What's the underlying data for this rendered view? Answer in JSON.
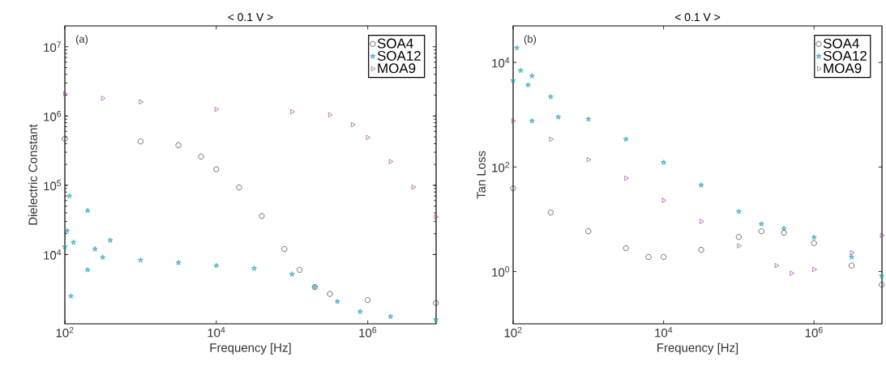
{
  "chart_data": [
    {
      "type": "scatter",
      "title": "< 0.1 V >",
      "xlabel": "Frequency [Hz]",
      "ylabel": "Dielectric Constant",
      "annotations": [
        "(a)"
      ],
      "xlim": [
        100,
        8000000
      ],
      "ylim": [
        1000,
        20000000
      ],
      "xticks": [
        {
          "value": 100,
          "label": "10$^{2}$"
        },
        {
          "value": 10000,
          "label": "10$^{4}$"
        },
        {
          "value": 1000000,
          "label": "10$^{6}$"
        }
      ],
      "yticks": [
        {
          "value": 10000,
          "label": "10$^{4}$"
        },
        {
          "value": 100000,
          "label": "10$^{5}$"
        },
        {
          "value": 1000000,
          "label": "10$^{6}$"
        },
        {
          "value": 10000000,
          "label": "10$^{7}$"
        }
      ],
      "log": "xy",
      "legend": "top right",
      "series": [
        {
          "name": "SOA4",
          "color": "#333333",
          "marker": "circle",
          "x": [
            100,
            1000,
            3162,
            6310,
            10000,
            20000,
            39800,
            79400,
            126000,
            200000,
            316000,
            1000000,
            7940000
          ],
          "values": [
            470000,
            430000,
            380000,
            260000,
            170000,
            93000,
            36000,
            12000,
            6000,
            3400,
            2700,
            2200,
            2000
          ]
        },
        {
          "name": "SOA12",
          "color": "#1a9fb5",
          "marker": "star",
          "x": [
            100,
            107,
            115,
            120,
            130,
            200,
            200,
            250,
            398,
            316,
            1000,
            3162,
            10000,
            31600,
            100000,
            200000,
            398000,
            794000,
            2000000,
            7940000
          ],
          "values": [
            13000,
            22000,
            70000,
            2500,
            15000,
            43000,
            6000,
            12000,
            16000,
            9100,
            8300,
            7600,
            6900,
            6300,
            5200,
            3400,
            2100,
            1500,
            1270,
            1150
          ]
        },
        {
          "name": "MOA9",
          "color": "#a0409a",
          "marker": "triangle",
          "x": [
            100,
            316,
            1000,
            10000,
            100000,
            316000,
            631000,
            1000000,
            2000000,
            3980000,
            7940000
          ],
          "values": [
            2100000,
            1800000,
            1600000,
            1250000,
            1150000,
            1040000,
            750000,
            490000,
            220000,
            94000,
            35000
          ]
        }
      ]
    },
    {
      "type": "scatter",
      "title": "< 0.1 V >",
      "xlabel": "Frequency [Hz]",
      "ylabel": "Tan Loss",
      "annotations": [
        "(b)"
      ],
      "xlim": [
        100,
        8000000
      ],
      "ylim": [
        0.1,
        50000
      ],
      "xticks": [
        {
          "value": 100,
          "label": "10$^{2}$"
        },
        {
          "value": 10000,
          "label": "10$^{4}$"
        },
        {
          "value": 1000000,
          "label": "10$^{6}$"
        }
      ],
      "yticks": [
        {
          "value": 1,
          "label": "10$^{0}$"
        },
        {
          "value": 100,
          "label": "10$^{2}$"
        },
        {
          "value": 10000,
          "label": "10$^{4}$"
        }
      ],
      "log": "xy",
      "legend": "top right",
      "series": [
        {
          "name": "SOA4",
          "color": "#333333",
          "marker": "circle",
          "x": [
            100,
            316,
            1000,
            3162,
            6310,
            10000,
            31600,
            100000,
            200000,
            398000,
            1000000,
            3160000,
            7940000
          ],
          "values": [
            39,
            13.5,
            5.9,
            2.8,
            1.9,
            1.9,
            2.6,
            4.6,
            5.9,
            5.5,
            3.5,
            1.3,
            0.56
          ]
        },
        {
          "name": "SOA12",
          "color": "#1a9fb5",
          "marker": "star",
          "x": [
            100,
            112,
            126,
            178,
            178,
            398,
            158,
            316,
            1000,
            3162,
            10000,
            31600,
            100000,
            200000,
            398000,
            1000000,
            3160000,
            7940000
          ],
          "values": [
            4500,
            19000,
            7000,
            5500,
            760,
            900,
            3700,
            2200,
            820,
            340,
            122,
            45,
            14,
            8.1,
            6.6,
            4.5,
            1.9,
            0.83
          ]
        },
        {
          "name": "MOA9",
          "color": "#a0409a",
          "marker": "triangle",
          "x": [
            100,
            316,
            1000,
            3162,
            10000,
            31600,
            100000,
            316000,
            501000,
            1000000,
            3160000,
            7940000
          ],
          "values": [
            760,
            340,
            138,
            61,
            23,
            9.1,
            3.1,
            1.3,
            0.93,
            1.1,
            2.3,
            4.9
          ]
        }
      ]
    }
  ]
}
